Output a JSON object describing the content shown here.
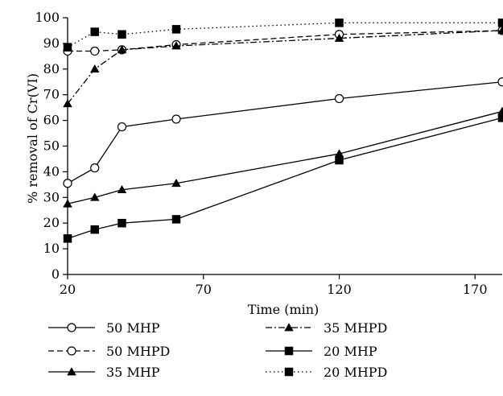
{
  "chart_data": {
    "type": "line",
    "xlabel": "Time (min)",
    "ylabel": "% removal of Cr(VI)",
    "xlim": [
      20,
      180
    ],
    "ylim": [
      0,
      100
    ],
    "xticks": [
      20,
      70,
      120,
      170
    ],
    "yticks": [
      0,
      10,
      20,
      30,
      40,
      50,
      60,
      70,
      80,
      90,
      100
    ],
    "grid": false,
    "legend_position": "bottom",
    "x": [
      20,
      30,
      40,
      60,
      120,
      180
    ],
    "series": [
      {
        "name": "50 MHP",
        "marker": "open-circle",
        "line": "solid",
        "values": [
          35.5,
          41.5,
          57.5,
          60.5,
          68.5,
          75
        ]
      },
      {
        "name": "50 MHPD",
        "marker": "open-circle",
        "line": "dashed",
        "values": [
          87,
          87,
          87.5,
          89.5,
          93.5,
          95
        ]
      },
      {
        "name": "35 MHP",
        "marker": "filled-triangle",
        "line": "solid",
        "values": [
          27.5,
          30,
          33,
          35.5,
          47,
          63.5
        ]
      },
      {
        "name": "35 MHPD",
        "marker": "filled-triangle",
        "line": "dash-dot",
        "values": [
          66.5,
          80,
          87.5,
          89,
          92,
          95
        ]
      },
      {
        "name": "20 MHP",
        "marker": "filled-square",
        "line": "solid",
        "values": [
          14,
          17.5,
          20,
          21.5,
          44.5,
          61
        ]
      },
      {
        "name": "20 MHPD",
        "marker": "filled-square",
        "line": "dotted",
        "values": [
          88.5,
          94.5,
          93.5,
          95.5,
          98,
          98
        ]
      }
    ]
  }
}
